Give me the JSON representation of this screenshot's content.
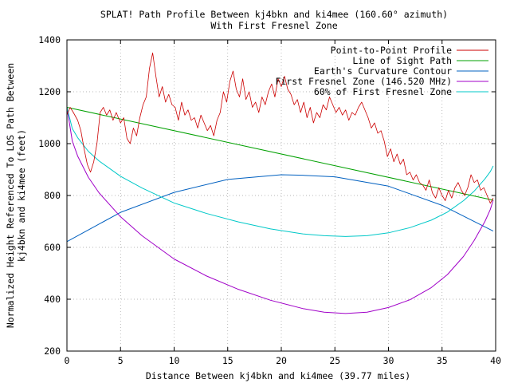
{
  "chart_data": {
    "type": "line",
    "title": "SPLAT! Path Profile Between kj4bkn and ki4mee (160.60° azimuth)",
    "subtitle": "With First Fresnel Zone",
    "xlabel": "Distance Between kj4bkn and ki4mee (39.77 miles)",
    "ylabel_line1": "Normalized Height Referenced To LOS Path Between",
    "ylabel_line2": "kj4bkn and ki4mee (feet)",
    "xlim": [
      0,
      40
    ],
    "ylim": [
      200,
      1400
    ],
    "grid": true,
    "legend_position": "top-right",
    "x_ticks": [
      0,
      5,
      10,
      15,
      20,
      25,
      30,
      35,
      40
    ],
    "y_ticks": [
      200,
      400,
      600,
      800,
      1000,
      1200,
      1400
    ],
    "series": [
      {
        "name": "Point-to-Point Profile",
        "color": "#cc0000",
        "x": [
          0,
          0.3,
          0.6,
          1.0,
          1.3,
          1.6,
          1.9,
          2.2,
          2.5,
          2.8,
          3.1,
          3.4,
          3.7,
          4.0,
          4.3,
          4.6,
          5.0,
          5.3,
          5.6,
          5.9,
          6.2,
          6.5,
          6.8,
          7.1,
          7.4,
          7.7,
          8.0,
          8.3,
          8.6,
          8.9,
          9.2,
          9.5,
          9.8,
          10.1,
          10.4,
          10.7,
          11.0,
          11.3,
          11.6,
          11.9,
          12.2,
          12.5,
          12.8,
          13.1,
          13.4,
          13.7,
          14.0,
          14.3,
          14.6,
          14.9,
          15.2,
          15.5,
          15.8,
          16.1,
          16.4,
          16.7,
          17.0,
          17.3,
          17.6,
          17.9,
          18.2,
          18.5,
          18.8,
          19.1,
          19.4,
          19.7,
          20.0,
          20.3,
          20.6,
          20.9,
          21.2,
          21.5,
          21.8,
          22.1,
          22.4,
          22.7,
          23.0,
          23.3,
          23.6,
          23.9,
          24.2,
          24.5,
          24.8,
          25.1,
          25.4,
          25.7,
          26.0,
          26.3,
          26.6,
          26.9,
          27.2,
          27.5,
          27.8,
          28.1,
          28.4,
          28.7,
          29.0,
          29.3,
          29.6,
          29.9,
          30.2,
          30.5,
          30.8,
          31.1,
          31.4,
          31.7,
          32.0,
          32.3,
          32.6,
          32.9,
          33.2,
          33.5,
          33.8,
          34.1,
          34.4,
          34.7,
          35.0,
          35.3,
          35.6,
          35.9,
          36.2,
          36.5,
          36.8,
          37.1,
          37.4,
          37.7,
          38.0,
          38.3,
          38.6,
          38.9,
          39.2,
          39.5,
          39.77
        ],
        "y": [
          1110,
          1140,
          1120,
          1090,
          1050,
          980,
          920,
          890,
          930,
          1000,
          1120,
          1140,
          1110,
          1130,
          1090,
          1120,
          1080,
          1100,
          1020,
          1000,
          1060,
          1030,
          1100,
          1150,
          1180,
          1290,
          1350,
          1260,
          1180,
          1220,
          1160,
          1190,
          1150,
          1140,
          1090,
          1160,
          1110,
          1130,
          1090,
          1100,
          1060,
          1110,
          1080,
          1050,
          1070,
          1030,
          1090,
          1120,
          1200,
          1160,
          1240,
          1280,
          1210,
          1180,
          1250,
          1170,
          1200,
          1140,
          1160,
          1120,
          1180,
          1150,
          1200,
          1230,
          1180,
          1250,
          1220,
          1260,
          1210,
          1190,
          1150,
          1170,
          1120,
          1160,
          1100,
          1140,
          1080,
          1120,
          1100,
          1150,
          1130,
          1180,
          1150,
          1120,
          1140,
          1110,
          1130,
          1090,
          1120,
          1110,
          1140,
          1160,
          1130,
          1100,
          1060,
          1080,
          1040,
          1050,
          1010,
          950,
          980,
          930,
          960,
          920,
          940,
          880,
          890,
          860,
          880,
          850,
          840,
          820,
          860,
          810,
          790,
          830,
          800,
          780,
          820,
          790,
          830,
          850,
          820,
          800,
          830,
          880,
          850,
          860,
          820,
          830,
          800,
          770,
          790
        ],
        "line_width": 0.8
      },
      {
        "name": "Line of Sight Path",
        "color": "#00a000",
        "x": [
          0,
          39.77
        ],
        "y": [
          1140,
          782
        ],
        "line_width": 1
      },
      {
        "name": "Earth's Curvature Contour",
        "color": "#0060c0",
        "x": [
          0,
          5,
          10,
          15,
          20,
          22,
          25,
          30,
          35,
          39.77
        ],
        "y": [
          622,
          735,
          812,
          862,
          880,
          878,
          872,
          836,
          762,
          663
        ],
        "line_width": 1
      },
      {
        "name": "First Fresnel Zone (146.520 MHz)",
        "color": "#a000c8",
        "x": [
          0,
          0.5,
          1,
          2,
          3,
          5,
          7,
          10,
          13,
          16,
          19,
          22,
          24,
          26,
          28,
          30,
          32,
          34,
          35.5,
          37,
          38,
          39,
          39.5,
          39.77
        ],
        "y": [
          1140,
          1010,
          952,
          870,
          810,
          718,
          645,
          555,
          490,
          438,
          396,
          364,
          350,
          345,
          350,
          368,
          398,
          445,
          495,
          565,
          627,
          700,
          746,
          782
        ],
        "line_width": 1
      },
      {
        "name": "60% of First Fresnel Zone",
        "color": "#00c8c8",
        "x": [
          0,
          0.5,
          1,
          2,
          3,
          5,
          7,
          10,
          13,
          16,
          19,
          22,
          24,
          26,
          28,
          30,
          32,
          34,
          35.5,
          37,
          38,
          39,
          39.5,
          39.77
        ],
        "y": [
          1140,
          1058,
          1023,
          970,
          933,
          874,
          829,
          771,
          731,
          698,
          671,
          652,
          645,
          642,
          645,
          656,
          676,
          705,
          736,
          780,
          817,
          864,
          892,
          914
        ],
        "line_width": 1
      }
    ]
  }
}
